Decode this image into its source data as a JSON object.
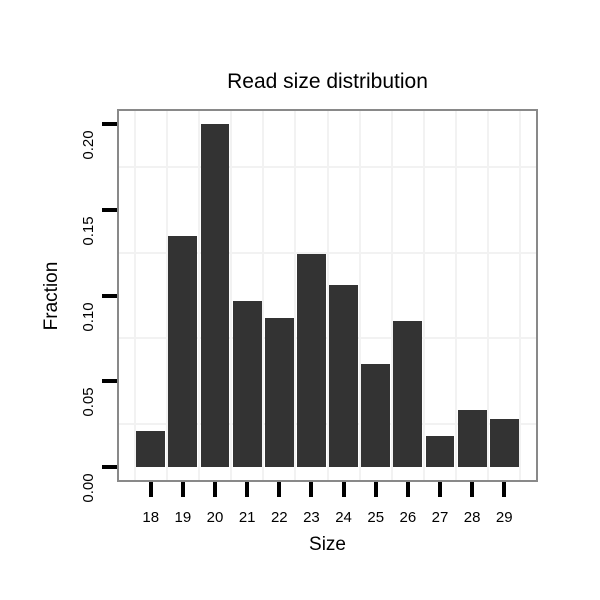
{
  "chart_data": {
    "type": "bar",
    "title": "Read size distribution",
    "xlabel": "Size",
    "ylabel": "Fraction",
    "categories": [
      18,
      19,
      20,
      21,
      22,
      23,
      24,
      25,
      26,
      27,
      28,
      29
    ],
    "values": [
      0.021,
      0.135,
      0.2,
      0.097,
      0.087,
      0.124,
      0.106,
      0.06,
      0.085,
      0.018,
      0.033,
      0.028
    ],
    "x_tick_labels": [
      "18",
      "19",
      "20",
      "21",
      "22",
      "23",
      "24",
      "25",
      "26",
      "27",
      "28",
      "29"
    ],
    "y_ticks": [
      0.0,
      0.05,
      0.1,
      0.15,
      0.2
    ],
    "y_tick_labels": [
      "0.00",
      "0.05",
      "0.10",
      "0.15",
      "0.20"
    ],
    "xlim": [
      16.95,
      30.05
    ],
    "ylim": [
      -0.009,
      0.209
    ],
    "bar_width": 0.9,
    "grid": {
      "major_visible": false,
      "y_minor": [
        0.025,
        0.075,
        0.125,
        0.175
      ],
      "x_minor": [
        17.5,
        18.5,
        19.5,
        20.5,
        21.5,
        22.5,
        23.5,
        24.5,
        25.5,
        26.5,
        27.5,
        28.5,
        29.5
      ]
    },
    "legend": "none",
    "colors": {
      "bar_fill": "#333333",
      "panel_border": "#898989",
      "grid_minor": "#f2f2f2",
      "axis_tick": "#000000",
      "text": "#000000",
      "background": "#ffffff"
    }
  }
}
